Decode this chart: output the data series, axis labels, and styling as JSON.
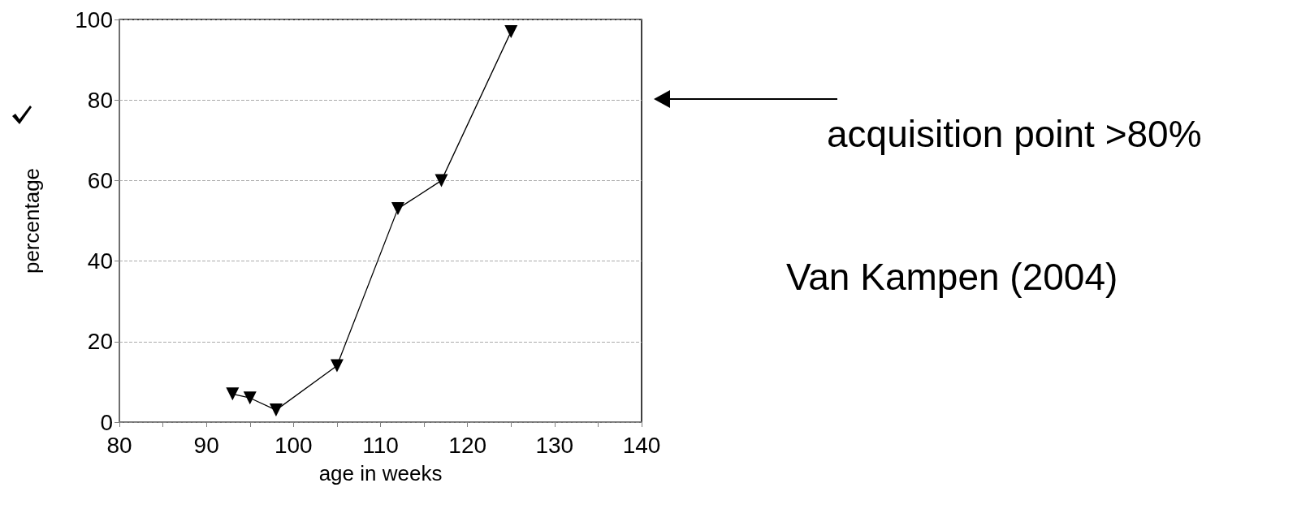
{
  "chart_data": {
    "type": "line",
    "x": [
      93,
      95,
      98,
      105,
      112,
      117,
      125
    ],
    "values": [
      7,
      6,
      3,
      14,
      53,
      60,
      97
    ],
    "color": "#000000",
    "xlabel": "age in weeks",
    "ylabel": "percentage",
    "xlim": [
      80,
      140
    ],
    "xticks": [
      80,
      90,
      100,
      110,
      120,
      130,
      140
    ],
    "ylim": [
      0,
      100
    ],
    "yticks": [
      0,
      20,
      40,
      60,
      80,
      100
    ],
    "grid": "y",
    "marker": "triangle",
    "line_style": "solid",
    "annotations": [
      "acquisition point >80%",
      "Van Kampen (2004)"
    ]
  }
}
